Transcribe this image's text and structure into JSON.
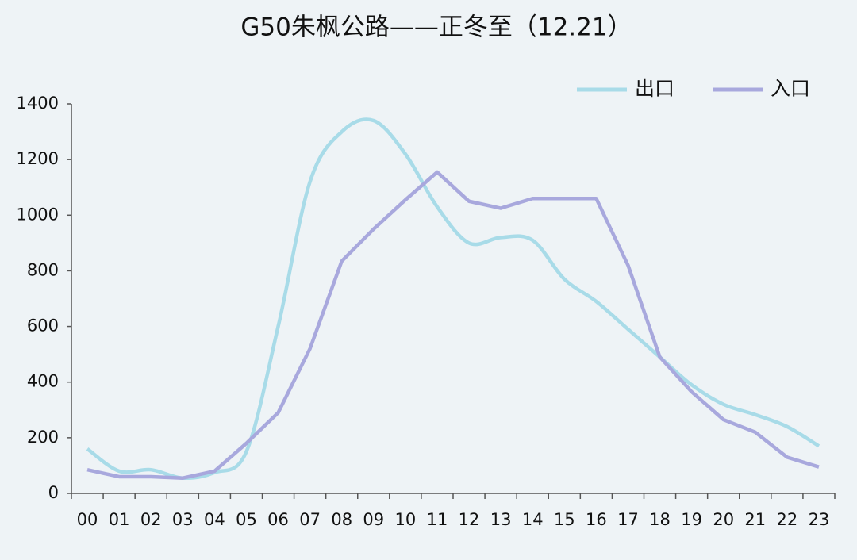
{
  "chart_data": {
    "type": "line",
    "title": "G50朱枫公路——正冬至（12.21）",
    "categories": [
      "00",
      "01",
      "02",
      "03",
      "04",
      "05",
      "06",
      "07",
      "08",
      "09",
      "10",
      "11",
      "12",
      "13",
      "14",
      "15",
      "16",
      "17",
      "18",
      "19",
      "20",
      "21",
      "22",
      "23"
    ],
    "series": [
      {
        "name": "出口",
        "color": "#a8dbe8",
        "smooth": true,
        "values": [
          160,
          80,
          85,
          55,
          75,
          150,
          600,
          1120,
          1300,
          1340,
          1220,
          1030,
          900,
          920,
          910,
          770,
          690,
          590,
          490,
          390,
          320,
          283,
          240,
          170
        ]
      },
      {
        "name": "入口",
        "color": "#a8a8dd",
        "smooth": false,
        "values": [
          85,
          60,
          60,
          55,
          80,
          180,
          290,
          520,
          835,
          950,
          1055,
          1155,
          1050,
          1025,
          1060,
          1060,
          1060,
          820,
          490,
          365,
          265,
          220,
          130,
          95
        ]
      }
    ],
    "ylim": [
      0,
      1400
    ],
    "yticks": [
      0,
      200,
      400,
      600,
      800,
      1000,
      1200,
      1400
    ],
    "legend": "top-right",
    "grid": false
  }
}
